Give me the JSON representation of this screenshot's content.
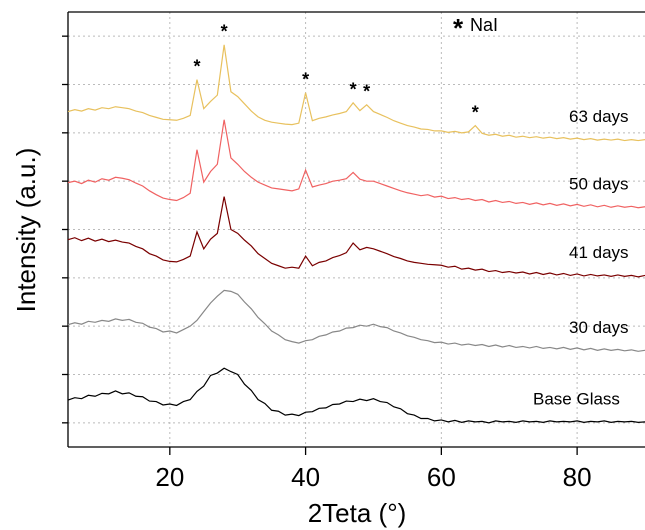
{
  "chart_data": {
    "type": "line",
    "xlabel": "2Teta (°)",
    "ylabel": "Intensity (a.u.)",
    "marker": "*",
    "marker_label": "NaI",
    "marker_series": 4,
    "marker_x": [
      24,
      28,
      40,
      47,
      49,
      65
    ],
    "xlim": [
      5,
      90
    ],
    "xticks": [
      20,
      40,
      60,
      80
    ],
    "ylim": [
      -0.5,
      8.5
    ],
    "yticks": [
      0,
      1,
      2,
      3,
      4,
      5,
      6,
      7,
      8
    ],
    "grid": true,
    "x": [
      5,
      6,
      7,
      8,
      9,
      10,
      11,
      12,
      13,
      14,
      15,
      16,
      17,
      18,
      19,
      20,
      21,
      22,
      23,
      24,
      25,
      26,
      27,
      28,
      29,
      30,
      31,
      32,
      33,
      34,
      35,
      36,
      37,
      38,
      39,
      40,
      41,
      42,
      43,
      44,
      45,
      46,
      47,
      48,
      49,
      50,
      51,
      52,
      53,
      54,
      55,
      56,
      57,
      58,
      59,
      60,
      61,
      62,
      63,
      64,
      65,
      66,
      67,
      68,
      69,
      70,
      71,
      72,
      73,
      74,
      75,
      76,
      77,
      78,
      79,
      80,
      81,
      82,
      83,
      84,
      85,
      86,
      87,
      88,
      89,
      90
    ],
    "series": [
      {
        "name": "Base Glass",
        "color": "#000000",
        "values": [
          0.47,
          0.52,
          0.5,
          0.57,
          0.55,
          0.61,
          0.6,
          0.66,
          0.6,
          0.62,
          0.55,
          0.54,
          0.45,
          0.44,
          0.37,
          0.39,
          0.36,
          0.44,
          0.48,
          0.65,
          0.76,
          0.98,
          1.03,
          1.13,
          1.06,
          1.0,
          0.8,
          0.67,
          0.48,
          0.4,
          0.26,
          0.24,
          0.16,
          0.18,
          0.15,
          0.22,
          0.23,
          0.3,
          0.31,
          0.38,
          0.39,
          0.45,
          0.44,
          0.49,
          0.46,
          0.5,
          0.44,
          0.42,
          0.33,
          0.29,
          0.19,
          0.16,
          0.09,
          0.09,
          0.04,
          0.06,
          0.02,
          0.05,
          0.01,
          0.04,
          0.02,
          0.03,
          0.0,
          0.04,
          0.02,
          0.03,
          0.01,
          0.04,
          0.02,
          0.03,
          0.01,
          0.04,
          0.02,
          0.03,
          0.02,
          0.04,
          0.01,
          0.03,
          0.02,
          0.04,
          0.01,
          0.03,
          0.02,
          0.03,
          0.01,
          0.02
        ]
      },
      {
        "name": "30 days",
        "color": "#888888",
        "values": [
          2.03,
          2.07,
          2.04,
          2.1,
          2.08,
          2.12,
          2.1,
          2.15,
          2.12,
          2.14,
          2.08,
          2.06,
          1.98,
          1.95,
          1.88,
          1.9,
          1.86,
          1.93,
          2.0,
          2.12,
          2.3,
          2.48,
          2.62,
          2.74,
          2.72,
          2.66,
          2.5,
          2.36,
          2.18,
          2.05,
          1.9,
          1.82,
          1.72,
          1.68,
          1.65,
          1.7,
          1.72,
          1.79,
          1.82,
          1.88,
          1.9,
          1.96,
          1.97,
          2.02,
          2.0,
          2.04,
          1.99,
          1.97,
          1.9,
          1.86,
          1.8,
          1.77,
          1.72,
          1.7,
          1.66,
          1.67,
          1.63,
          1.65,
          1.61,
          1.63,
          1.6,
          1.62,
          1.58,
          1.61,
          1.57,
          1.6,
          1.56,
          1.58,
          1.55,
          1.58,
          1.54,
          1.56,
          1.53,
          1.56,
          1.52,
          1.55,
          1.51,
          1.54,
          1.5,
          1.53,
          1.5,
          1.52,
          1.49,
          1.51,
          1.48,
          1.5
        ]
      },
      {
        "name": "41 days",
        "color": "#7a0000",
        "values": [
          3.79,
          3.83,
          3.77,
          3.82,
          3.76,
          3.8,
          3.75,
          3.78,
          3.74,
          3.72,
          3.65,
          3.6,
          3.5,
          3.45,
          3.37,
          3.34,
          3.33,
          3.38,
          3.45,
          3.95,
          3.6,
          3.8,
          3.92,
          4.68,
          4.0,
          3.92,
          3.78,
          3.66,
          3.5,
          3.4,
          3.3,
          3.25,
          3.2,
          3.22,
          3.2,
          3.45,
          3.25,
          3.32,
          3.35,
          3.42,
          3.46,
          3.52,
          3.72,
          3.58,
          3.63,
          3.6,
          3.55,
          3.5,
          3.44,
          3.4,
          3.35,
          3.32,
          3.3,
          3.28,
          3.27,
          3.26,
          3.22,
          3.24,
          3.18,
          3.2,
          3.16,
          3.18,
          3.13,
          3.15,
          3.11,
          3.13,
          3.1,
          3.12,
          3.08,
          3.11,
          3.07,
          3.1,
          3.06,
          3.09,
          3.05,
          3.08,
          3.04,
          3.07,
          3.04,
          3.06,
          3.03,
          3.06,
          3.03,
          3.05,
          3.02,
          3.05
        ]
      },
      {
        "name": "50 days",
        "color": "#f06262",
        "values": [
          4.97,
          5.0,
          4.95,
          5.02,
          4.98,
          5.05,
          5.02,
          5.08,
          5.06,
          5.03,
          4.96,
          4.9,
          4.8,
          4.72,
          4.65,
          4.62,
          4.6,
          4.66,
          4.75,
          5.65,
          4.98,
          5.2,
          5.35,
          6.27,
          5.48,
          5.35,
          5.2,
          5.08,
          4.98,
          4.92,
          4.86,
          4.84,
          4.82,
          4.8,
          4.84,
          5.23,
          4.88,
          4.92,
          4.95,
          5.0,
          5.02,
          5.05,
          5.18,
          5.04,
          5.0,
          5.0,
          4.95,
          4.9,
          4.85,
          4.8,
          4.76,
          4.73,
          4.7,
          4.72,
          4.67,
          4.69,
          4.64,
          4.66,
          4.62,
          4.64,
          4.6,
          4.62,
          4.57,
          4.6,
          4.56,
          4.58,
          4.54,
          4.56,
          4.52,
          4.55,
          4.51,
          4.54,
          4.5,
          4.53,
          4.49,
          4.52,
          4.48,
          4.51,
          4.47,
          4.5,
          4.46,
          4.49,
          4.46,
          4.48,
          4.45,
          4.47
        ]
      },
      {
        "name": "63 days",
        "color": "#e8c15e",
        "values": [
          6.44,
          6.48,
          6.45,
          6.5,
          6.47,
          6.52,
          6.5,
          6.54,
          6.52,
          6.5,
          6.45,
          6.42,
          6.36,
          6.32,
          6.28,
          6.27,
          6.26,
          6.3,
          6.36,
          7.1,
          6.5,
          6.65,
          6.78,
          7.82,
          6.85,
          6.75,
          6.6,
          6.45,
          6.33,
          6.26,
          6.22,
          6.2,
          6.18,
          6.17,
          6.2,
          6.83,
          6.25,
          6.3,
          6.33,
          6.37,
          6.4,
          6.44,
          6.62,
          6.46,
          6.58,
          6.44,
          6.38,
          6.32,
          6.25,
          6.2,
          6.15,
          6.12,
          6.08,
          6.07,
          6.04,
          6.04,
          6.01,
          6.03,
          6.0,
          6.02,
          6.15,
          5.99,
          5.95,
          5.97,
          5.93,
          5.95,
          5.91,
          5.93,
          5.9,
          5.92,
          5.89,
          5.91,
          5.88,
          5.9,
          5.87,
          5.89,
          5.86,
          5.88,
          5.85,
          5.87,
          5.85,
          5.87,
          5.84,
          5.86,
          5.84,
          5.86
        ]
      }
    ]
  }
}
